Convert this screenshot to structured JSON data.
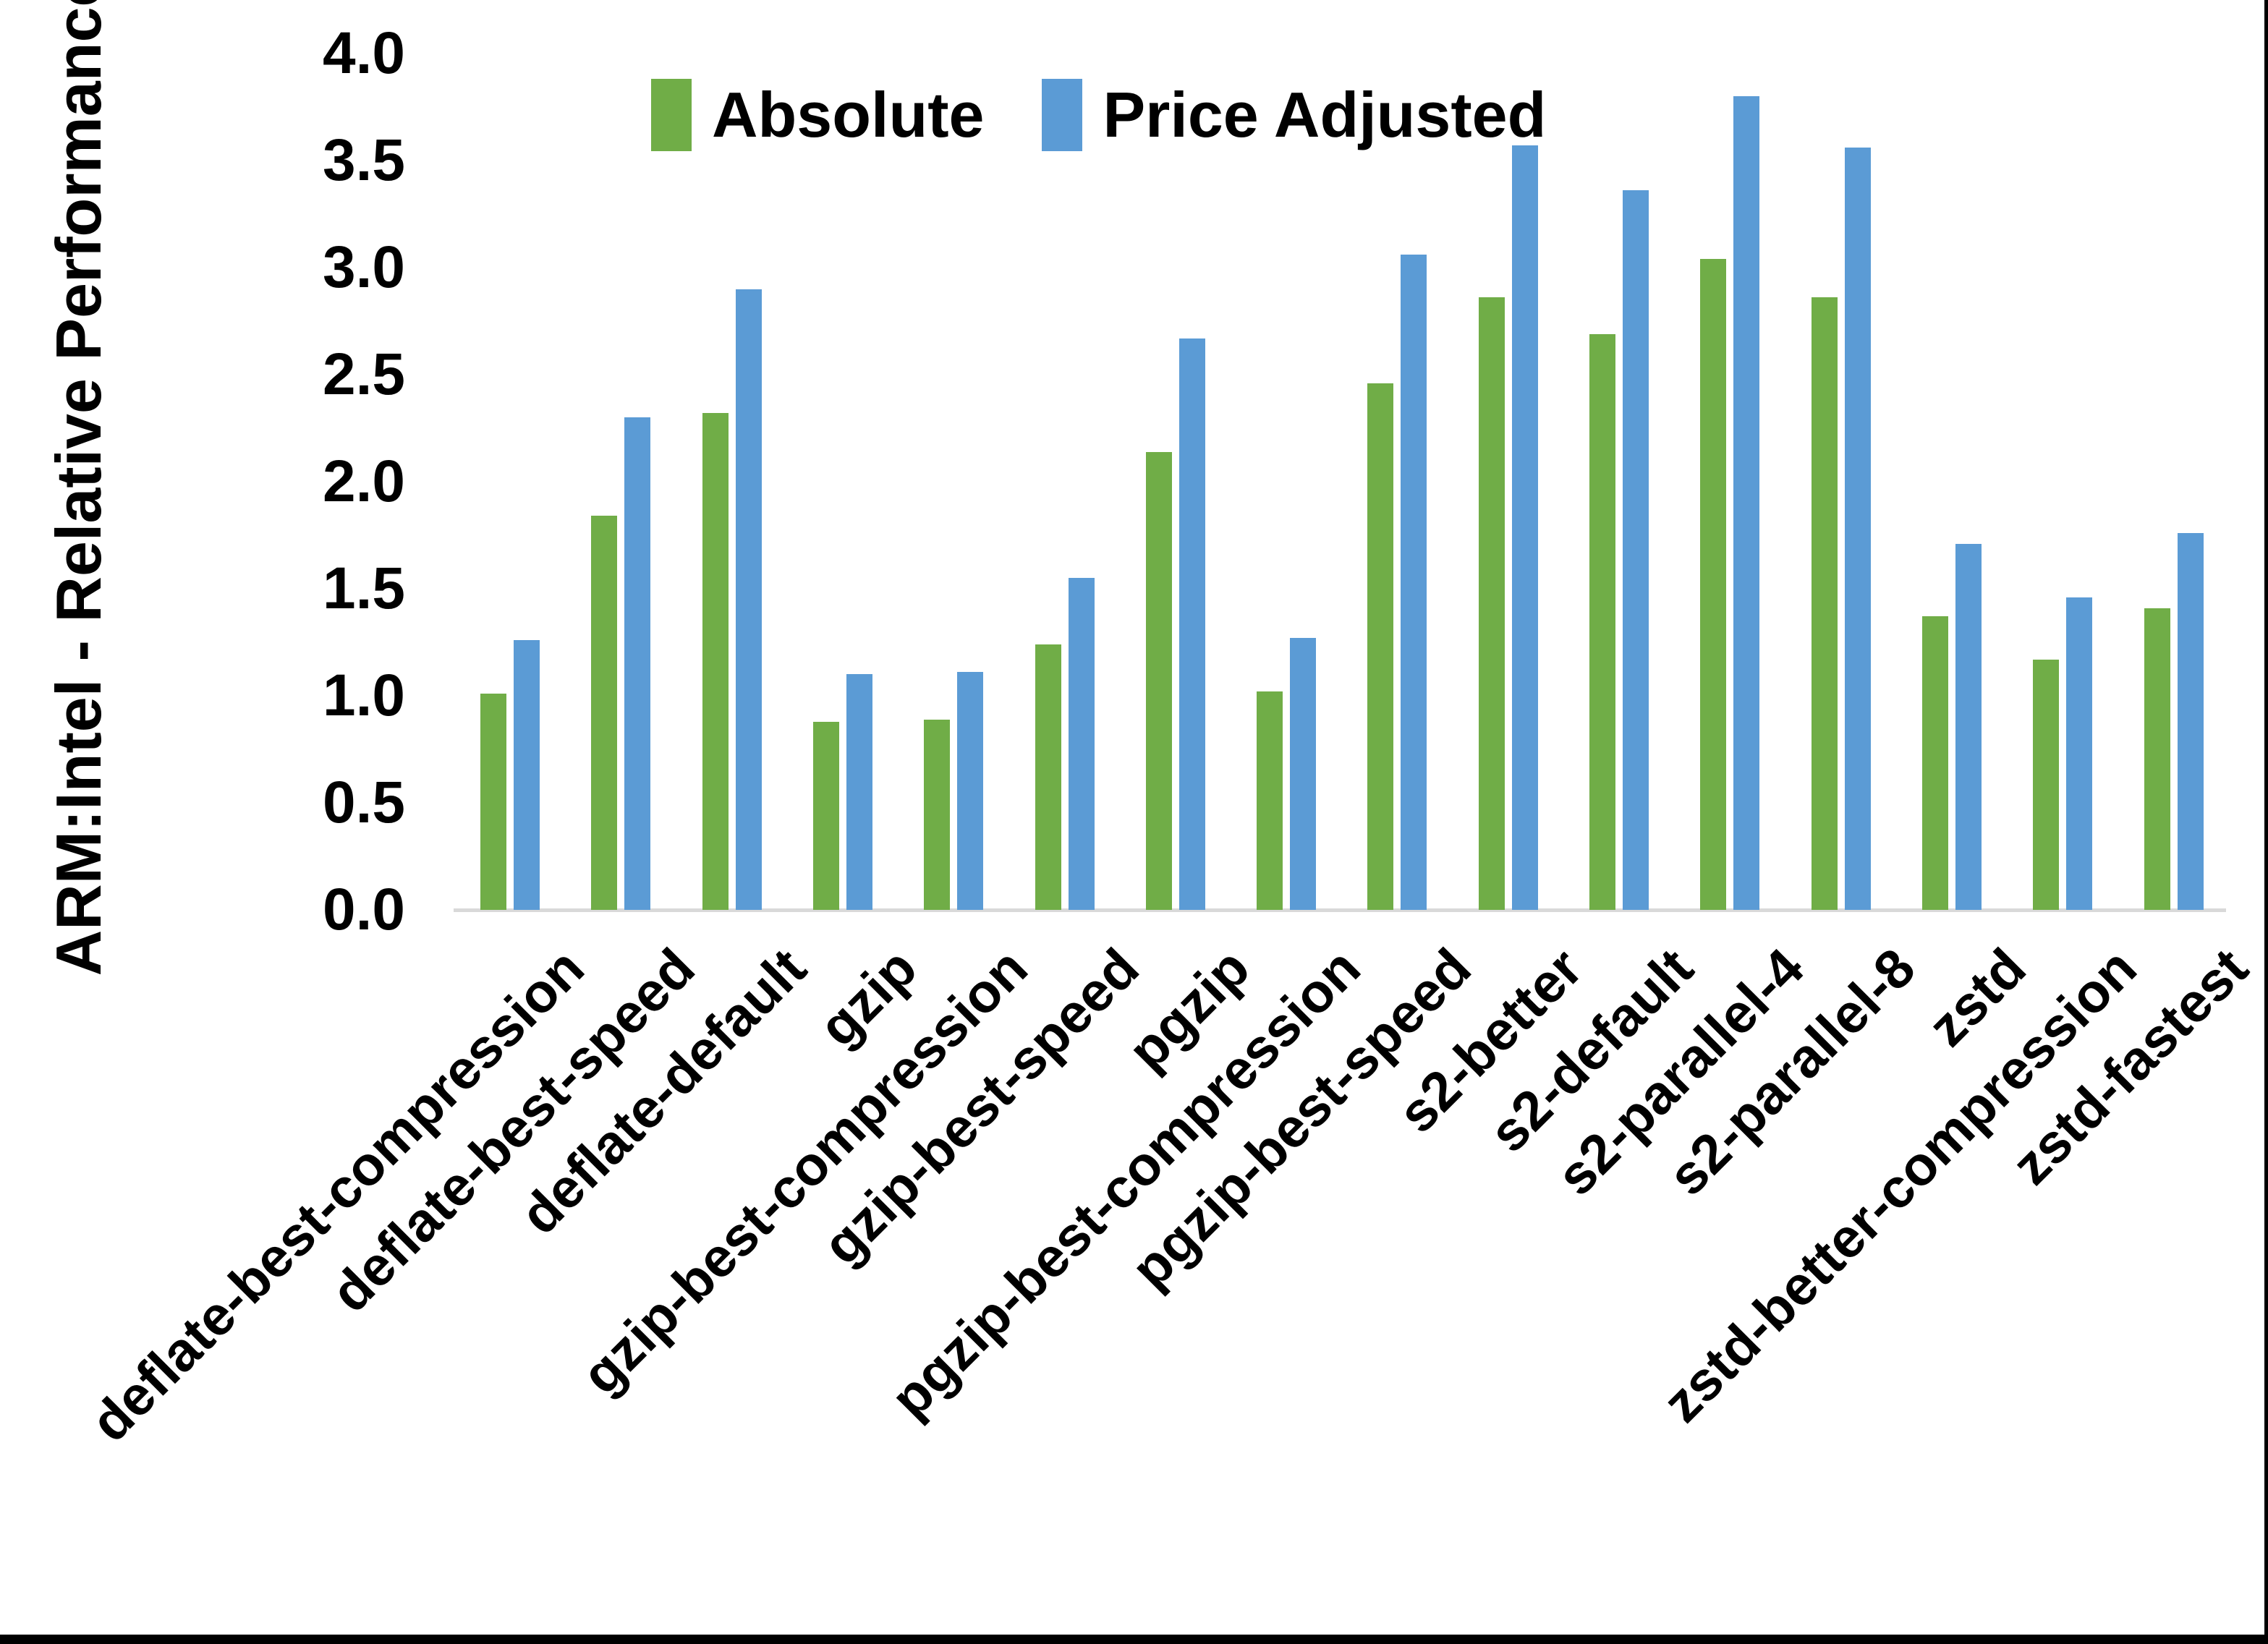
{
  "chart_data": {
    "type": "bar",
    "title": "",
    "ylabel": "ARM:Intel - Relative Performance",
    "xlabel": "",
    "ylim": [
      0.0,
      4.0
    ],
    "ytick_step": 0.5,
    "ytick_format_decimals": 1,
    "grid": false,
    "legend_position": "top-center",
    "categories": [
      "deflate-best-compression",
      "deflate-best-speed",
      "deflate-default",
      "gzip",
      "gzip-best-compression",
      "gzip-best-speed",
      "pgzip",
      "pgzip-best-compression",
      "pgzip-best-speed",
      "s2-better",
      "s2-default",
      "s2-parallel-4",
      "s2-parallel-8",
      "zstd",
      "zstd-better-compression",
      "zstd-fastest"
    ],
    "series": [
      {
        "name": "Absolute",
        "color": "#70AD47",
        "values": [
          1.01,
          1.84,
          2.32,
          0.88,
          0.89,
          1.24,
          2.14,
          1.02,
          2.46,
          2.86,
          2.69,
          3.04,
          2.86,
          1.37,
          1.17,
          1.41
        ]
      },
      {
        "name": "Price Adjusted",
        "color": "#5B9BD5",
        "values": [
          1.26,
          2.3,
          2.9,
          1.1,
          1.11,
          1.55,
          2.67,
          1.27,
          3.06,
          3.57,
          3.36,
          3.8,
          3.56,
          1.71,
          1.46,
          1.76
        ]
      }
    ]
  },
  "frame": {
    "bottom_edge_color": "#000000",
    "right_edge_color": "#000000",
    "axis_line_color": "#d9d9d9",
    "background": "#ffffff"
  }
}
